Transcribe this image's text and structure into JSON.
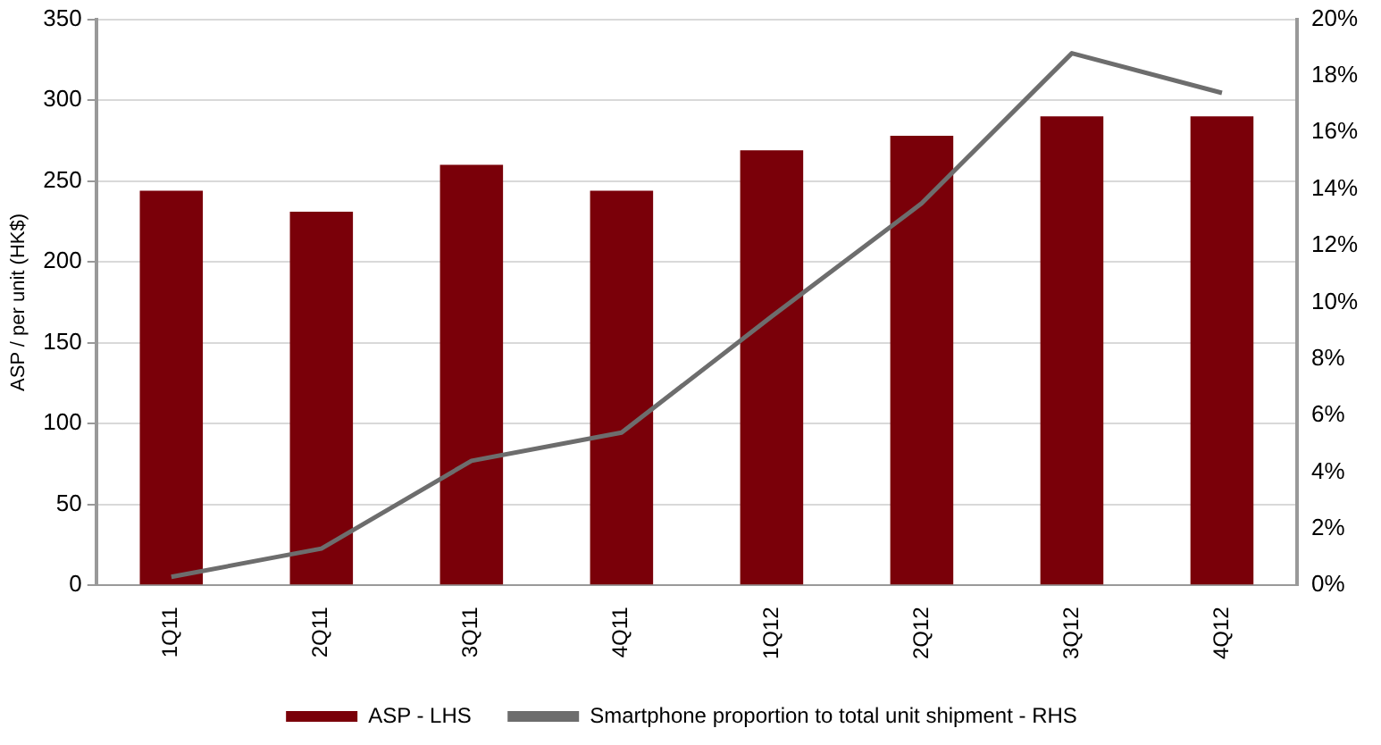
{
  "chart_data": {
    "type": "bar",
    "ylabel": "ASP / per unit (HK$)",
    "categories": [
      "1Q11",
      "2Q11",
      "3Q11",
      "4Q11",
      "1Q12",
      "2Q12",
      "3Q12",
      "4Q12"
    ],
    "series": [
      {
        "name": "ASP - LHS",
        "color": "#7a0009",
        "values": [
          244,
          231,
          260,
          244,
          269,
          278,
          290,
          290
        ]
      },
      {
        "name": "Smartphone proportion to total unit shipment - RHS",
        "type": "line",
        "axis": "y2",
        "color": "#6d6d6d",
        "marker": "none",
        "values": [
          0.3,
          1.3,
          4.4,
          5.4,
          9.5,
          13.5,
          18.8,
          17.4
        ]
      }
    ],
    "ylim": [
      0,
      350
    ],
    "yticks": [
      0,
      50,
      100,
      150,
      200,
      250,
      300,
      350
    ],
    "y2lim": [
      0,
      20
    ],
    "y2ticks": [
      {
        "value": 0,
        "label": "0%"
      },
      {
        "value": 2,
        "label": "2%"
      },
      {
        "value": 4,
        "label": "4%"
      },
      {
        "value": 6,
        "label": "6%"
      },
      {
        "value": 8,
        "label": "8%"
      },
      {
        "value": 10,
        "label": "10%"
      },
      {
        "value": 12,
        "label": "12%"
      },
      {
        "value": 14,
        "label": "14%"
      },
      {
        "value": 16,
        "label": "16%"
      },
      {
        "value": 18,
        "label": "18%"
      },
      {
        "value": 20,
        "label": "20%"
      }
    ],
    "grid": "y",
    "legend": "bottom"
  }
}
